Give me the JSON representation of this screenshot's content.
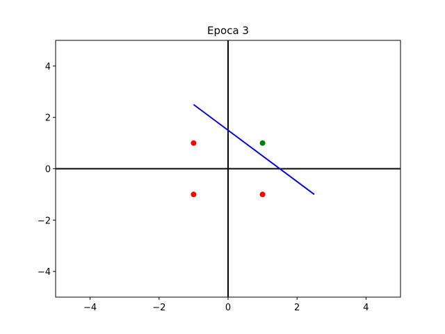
{
  "chart_data": {
    "type": "scatter",
    "title": "Epoca 3",
    "xlabel": "",
    "ylabel": "",
    "xlim": [
      -5,
      5
    ],
    "ylim": [
      -5,
      5
    ],
    "xticks": [
      -4,
      -2,
      0,
      2,
      4
    ],
    "yticks": [
      -4,
      -2,
      0,
      2,
      4
    ],
    "tick_labels": [
      "−4",
      "−2",
      "0",
      "2",
      "4"
    ],
    "grid": false,
    "axes_lines": {
      "x": 0,
      "y": 0,
      "color": "#000000"
    },
    "points": [
      {
        "x": -1,
        "y": 1,
        "color": "#ff0000"
      },
      {
        "x": -1,
        "y": -1,
        "color": "#ff0000"
      },
      {
        "x": 1,
        "y": -1,
        "color": "#ff0000"
      },
      {
        "x": 1,
        "y": 1,
        "color": "#008000"
      }
    ],
    "decision_line": {
      "x": [
        -1,
        2.5
      ],
      "y": [
        2.5,
        -1
      ],
      "color": "#0000ff"
    }
  }
}
